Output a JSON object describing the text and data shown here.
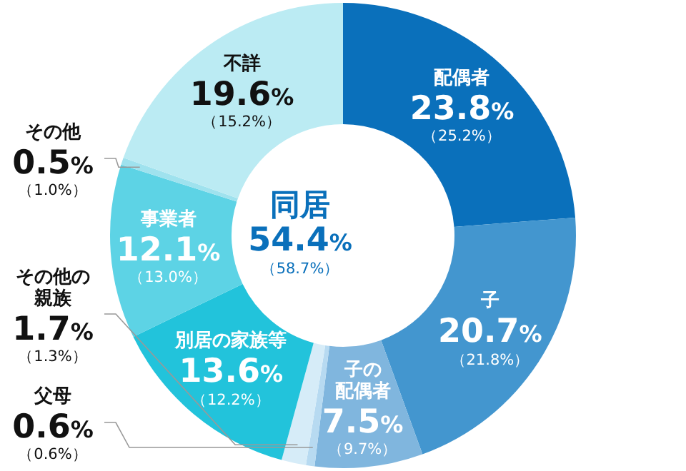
{
  "chart_data": {
    "type": "donut",
    "categories": [
      "配偶者",
      "子",
      "子の配偶者",
      "父母",
      "その他の親族",
      "別居の家族等",
      "事業者",
      "その他",
      "不詳"
    ],
    "values": [
      23.8,
      20.7,
      7.5,
      0.6,
      1.7,
      13.6,
      12.1,
      0.5,
      19.6
    ],
    "colors": [
      "#0a70bb",
      "#4396cf",
      "#80b6de",
      "#b7daf1",
      "#d6ecf8",
      "#22c3db",
      "#5dd3e5",
      "#9fe2ee",
      "#bbebf3"
    ],
    "value_labels": [
      "23.8%",
      "20.7%",
      "7.5%",
      "0.6%",
      "1.7%",
      "13.6%",
      "12.1%",
      "0.5%",
      "19.6%"
    ],
    "annotations": [
      {
        "text": "（25.2%）",
        "x": "配偶者"
      },
      {
        "text": "（21.8%）",
        "x": "子"
      },
      {
        "text": "（9.7%）",
        "x": "子の配偶者"
      },
      {
        "text": "（0.6%）",
        "x": "父母"
      },
      {
        "text": "（1.3%）",
        "x": "その他の親族"
      },
      {
        "text": "（12.2%）",
        "x": "別居の家族等"
      },
      {
        "text": "（13.0%）",
        "x": "事業者"
      },
      {
        "text": "（1.0%）",
        "x": "その他"
      },
      {
        "text": "（15.2%）",
        "x": "不詳"
      },
      "同居",
      "54.4%",
      "（58.7%）"
    ]
  }
}
